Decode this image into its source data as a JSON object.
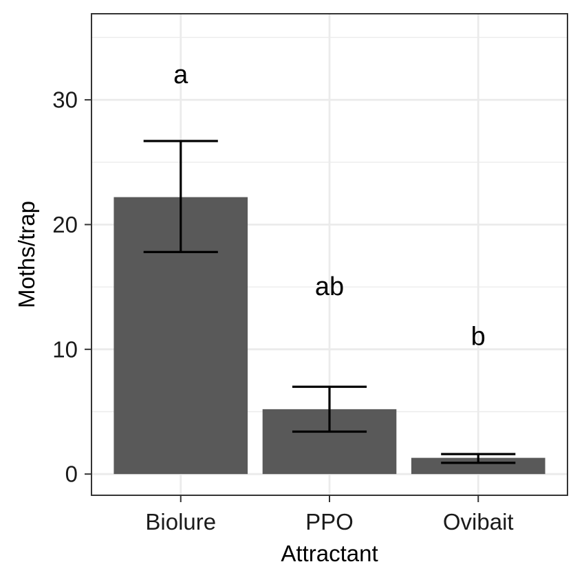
{
  "chart_data": {
    "type": "bar",
    "categories": [
      "Biolure",
      "PPO",
      "Ovibait"
    ],
    "values": [
      22.2,
      5.2,
      1.3
    ],
    "error_low": [
      17.8,
      3.4,
      0.9
    ],
    "error_high": [
      26.7,
      7.0,
      1.6
    ],
    "significance": [
      "a",
      "ab",
      "b"
    ],
    "significance_y": [
      32,
      15,
      11
    ],
    "xlabel": "Attractant",
    "ylabel": "Moths/trap",
    "ylim": [
      -1.7,
      36.9
    ],
    "yticks": [
      0,
      10,
      20,
      30
    ],
    "ytick_labels": [
      "0",
      "10",
      "20",
      "30"
    ],
    "grid": true,
    "colors": {
      "bar": "#595959",
      "grid": "#ebebeb",
      "panel_border": "#333333",
      "error_bar": "#000000"
    }
  }
}
